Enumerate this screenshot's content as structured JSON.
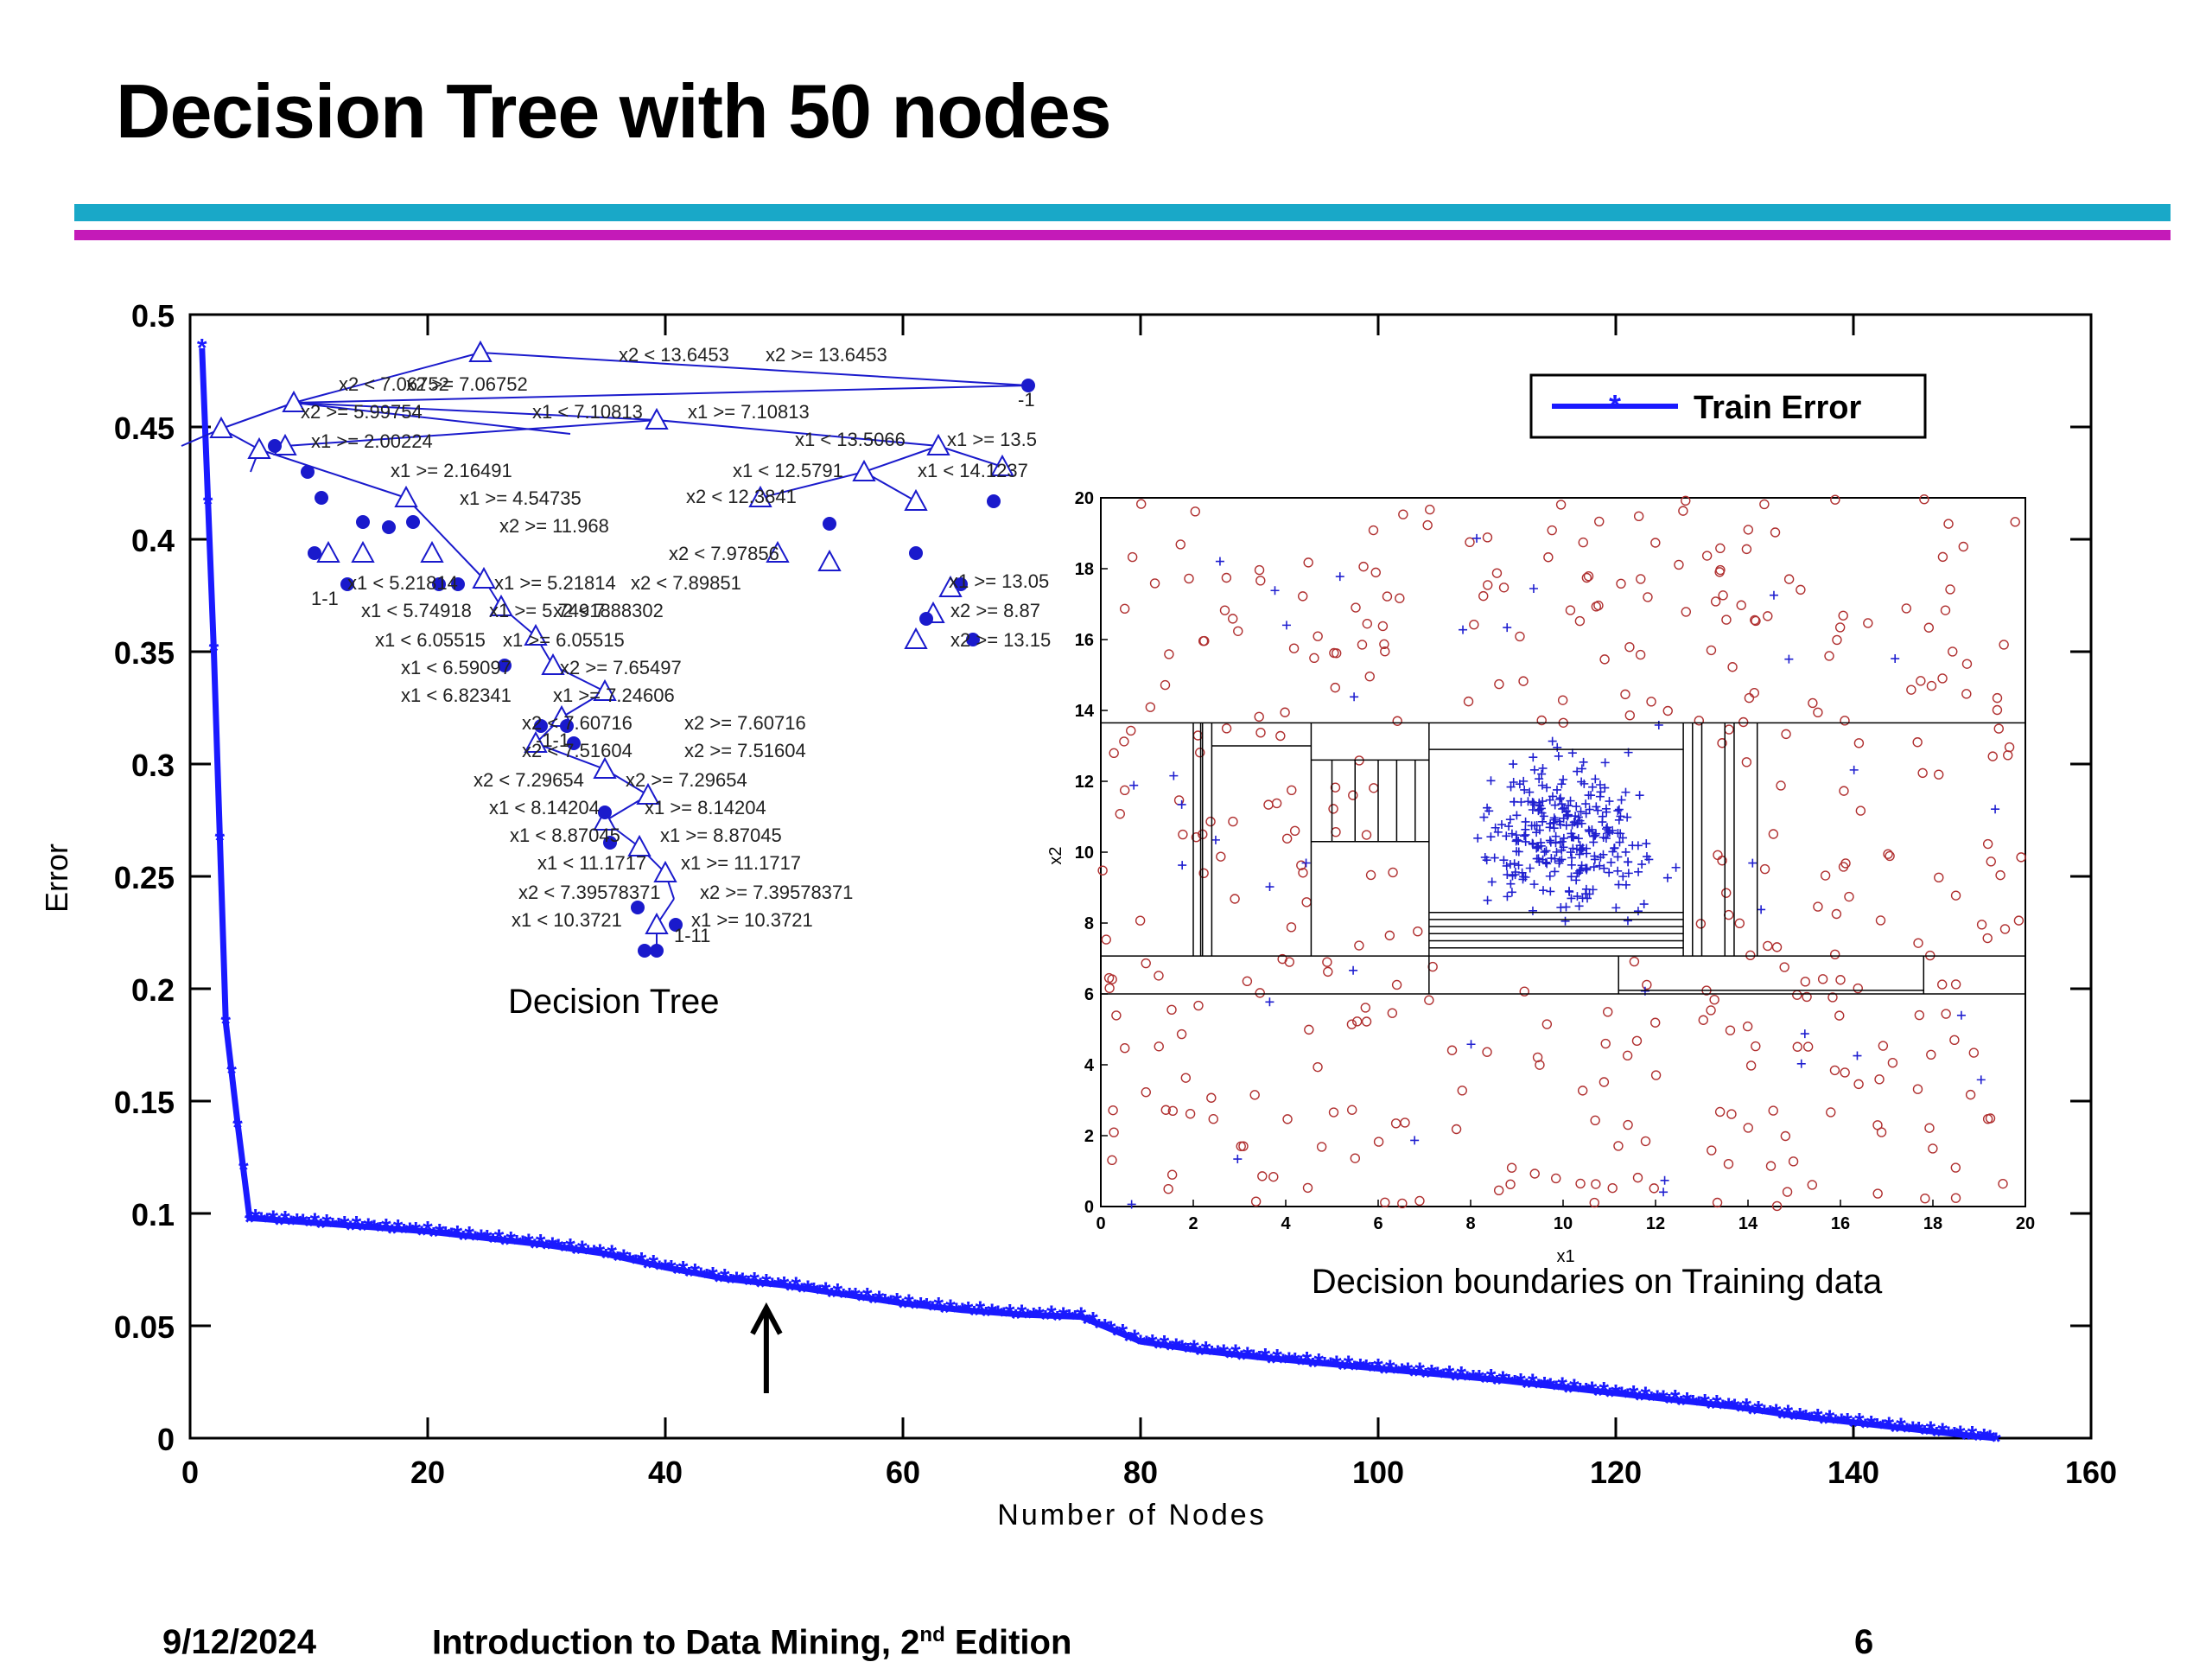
{
  "slide": {
    "title": "Decision Tree with 50 nodes",
    "footer_date": "9/12/2024",
    "footer_course_main": "Introduction to Data Mining, 2",
    "footer_course_sup": "nd",
    "footer_course_tail": " Edition",
    "page_number": "6"
  },
  "colors": {
    "series": "#1a1aff",
    "tree": "#1a1acc",
    "class_circle": "#b03030",
    "class_plus": "#2020d0",
    "rule_cyan": "#19a8c8",
    "rule_magenta": "#c41ab8"
  },
  "chart_data": {
    "type": "line",
    "title": "",
    "xlabel": "Number of Nodes",
    "ylabel": "Error",
    "xlim": [
      0,
      160
    ],
    "ylim": [
      0,
      0.5
    ],
    "xticks": [
      0,
      20,
      40,
      60,
      80,
      100,
      120,
      140,
      160
    ],
    "yticks": [
      0,
      0.05,
      0.1,
      0.15,
      0.2,
      0.25,
      0.3,
      0.35,
      0.4,
      0.45,
      0.5
    ],
    "grid": false,
    "legend_position": "top-right",
    "series": [
      {
        "name": "Train Error",
        "x": [
          1,
          2,
          3,
          4,
          5,
          10,
          20,
          30,
          35,
          40,
          45,
          50,
          55,
          60,
          65,
          70,
          75,
          80,
          85,
          90,
          100,
          110,
          120,
          130,
          135,
          140,
          145,
          150,
          152
        ],
        "y": [
          0.485,
          0.35,
          0.185,
          0.14,
          0.098,
          0.096,
          0.092,
          0.086,
          0.082,
          0.076,
          0.071,
          0.068,
          0.064,
          0.06,
          0.057,
          0.055,
          0.054,
          0.043,
          0.039,
          0.036,
          0.031,
          0.026,
          0.02,
          0.014,
          0.01,
          0.007,
          0.004,
          0.001,
          0.0
        ]
      }
    ],
    "annotation": {
      "type": "arrow",
      "x": 48.5,
      "y_from": 0.02,
      "y_to": 0.058
    }
  },
  "inset_tree": {
    "caption": "Decision Tree",
    "labels": [
      "x2 < 13.6453",
      "x2 >= 13.6453",
      "x2 < 7.06752",
      "x2 >= 7.06752",
      "x2 >= 5.99754",
      "x1 < 7.10813",
      "x1 >= 7.10813",
      "x1 < 13.5066",
      "x1 >= 13.5",
      "x1 < 12.5791",
      "x1 < 14.1237",
      "x2 < 12.3841",
      "x2 < 7.97856",
      "x1 >= 2.00224",
      "x1 >= 2.16491",
      "x1 >= 4.54735",
      "x2 >= 11.968",
      "x1 < 5.21814",
      "x1 >= 5.21814",
      "x2 < 7.89851",
      "x1 < 5.74918",
      "x1 >= 5.74918",
      "x2 < 7.88302",
      "x1 < 6.05515",
      "x1 >= 6.05515",
      "x1 < 6.59097",
      "x2 >= 7.65497",
      "x1 < 6.82341",
      "x1 >= 7.24606",
      "x2 < 7.60716",
      "x2 >= 7.60716",
      "x2 < 7.51604",
      "x2 >= 7.51604",
      "x2 < 7.29654",
      "x2 >= 7.29654",
      "x1 < 8.14204",
      "x1 >= 8.14204",
      "x1 < 8.87045",
      "x1 >= 8.87045",
      "x1 < 11.1717",
      "x1 >= 11.1717",
      "x2 < 7.39578371",
      "x2 >= 7.39578371",
      "x1 < 10.3721",
      "x1 >= 10.3721",
      "x2 >= 8.87",
      "x2 >= 13.15",
      "x1 >= 13.05",
      "-1",
      "1-1",
      "-1-1",
      "1-11"
    ]
  },
  "inset_scatter": {
    "caption": "Decision boundaries on Training data",
    "xlabel": "x1",
    "ylabel": "x2",
    "xlim": [
      0,
      20
    ],
    "ylim": [
      0,
      20
    ],
    "xticks": [
      0,
      2,
      4,
      6,
      8,
      10,
      12,
      14,
      16,
      18,
      20
    ],
    "yticks": [
      0,
      2,
      4,
      6,
      8,
      10,
      12,
      14,
      16,
      18,
      20
    ],
    "classes": [
      {
        "marker": "o",
        "region": "outside box",
        "approx_count": 420
      },
      {
        "marker": "+",
        "region": "concentrated around (10, 10.5)",
        "approx_count": 330
      }
    ],
    "boundaries": {
      "horizontal": [
        13.65,
        7.07,
        6.0
      ],
      "vertical": [
        2.0,
        2.16,
        4.55,
        7.1,
        12.6,
        13.5
      ]
    }
  }
}
